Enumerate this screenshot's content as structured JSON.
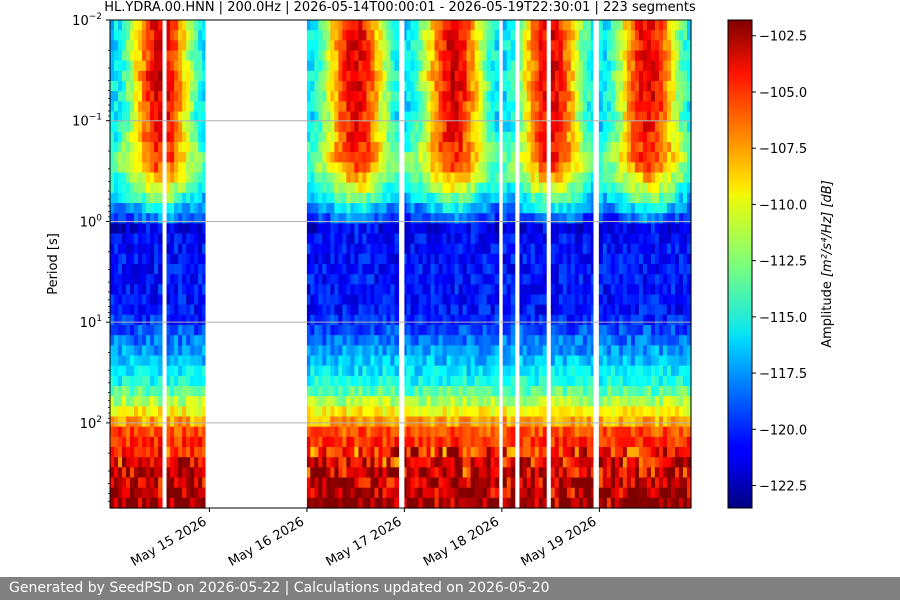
{
  "chart_data": {
    "type": "heatmap",
    "title": "HL.YDRA.00.HNN | 200.0Hz | 2026-05-14T00:00:01 - 2026-05-19T22:30:01 | 223 segments",
    "xlabel": "",
    "ylabel": "Period [s]",
    "x_tick_labels": [
      "May 15 2026",
      "May 16 2026",
      "May 17 2026",
      "May 18 2026",
      "May 19 2026"
    ],
    "y_scale": "log",
    "y_inverted": true,
    "ylim": [
      0.01,
      700
    ],
    "y_tick_labels": [
      {
        "base": "10",
        "exp": "−2",
        "value": 0.01
      },
      {
        "base": "10",
        "exp": "−1",
        "value": 0.1
      },
      {
        "base": "10",
        "exp": "0",
        "value": 1
      },
      {
        "base": "10",
        "exp": "1",
        "value": 10
      },
      {
        "base": "10",
        "exp": "2",
        "value": 100
      }
    ],
    "colorbar": {
      "label_text": "Amplitude",
      "units": "[m²/s⁴/Hz] [dB]",
      "colormap": "jet",
      "range": [
        -123.5,
        -101.8
      ],
      "tick_labels": [
        "−102.5",
        "−105.0",
        "−107.5",
        "−110.0",
        "−112.5",
        "−115.0",
        "−117.5",
        "−120.0",
        "−122.5"
      ],
      "tick_values": [
        -102.5,
        -105.0,
        -107.5,
        -110.0,
        -112.5,
        -115.0,
        -117.5,
        -120.0,
        -122.5
      ]
    },
    "x_range_days": [
      -0.02,
      5.94
    ],
    "data_gaps_days": [
      [
        0.52,
        0.56
      ],
      [
        0.96,
        2.0
      ],
      [
        2.96,
        3.0
      ],
      [
        3.98,
        4.0
      ],
      [
        4.14,
        4.18
      ],
      [
        4.46,
        4.5
      ],
      [
        4.94,
        4.98
      ]
    ],
    "daytime_high_noise_spans_days": [
      [
        0.0,
        0.45
      ],
      [
        0.56,
        0.96
      ],
      [
        2.0,
        2.95
      ],
      [
        3.0,
        3.95
      ],
      [
        4.0,
        4.14
      ],
      [
        4.2,
        4.45
      ],
      [
        4.5,
        4.94
      ],
      [
        5.0,
        5.94
      ]
    ],
    "grid": true
  },
  "footer": {
    "text": "Generated by SeedPSD on 2026-05-22 | Calculations updated on 2026-05-20"
  }
}
